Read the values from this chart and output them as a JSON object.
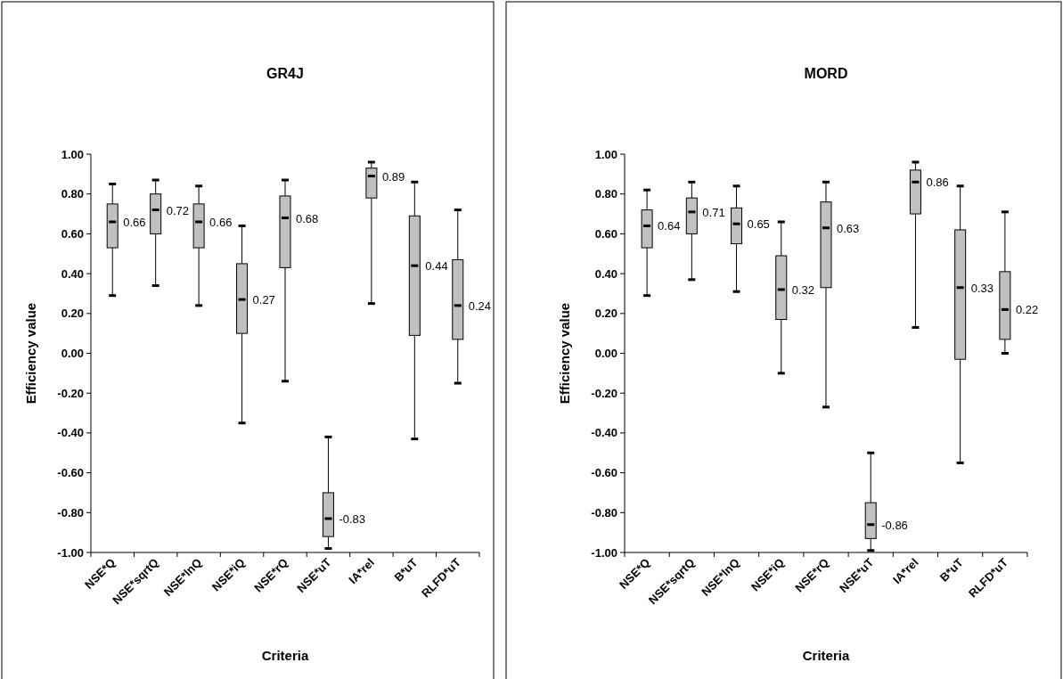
{
  "chart_data": [
    {
      "type": "box",
      "title": "GR4J",
      "xlabel": "Criteria",
      "ylabel": "Efficiency value",
      "categories": [
        "NSE*Q",
        "NSE*sqrtQ",
        "NSE*lnQ",
        "NSE*iQ",
        "NSE*rQ",
        "NSE*uT",
        "IA*rel",
        "B*uT",
        "RLFD*uT"
      ],
      "color": "#c0c0c0",
      "value_labels": [
        "0.66",
        "0.72",
        "0.66",
        "0.27",
        "0.68",
        "-0.83",
        "0.89",
        "0.44",
        "0.24"
      ],
      "boxes": [
        {
          "low": 0.29,
          "q1": 0.53,
          "median": 0.66,
          "q3": 0.75,
          "high": 0.85
        },
        {
          "low": 0.34,
          "q1": 0.6,
          "median": 0.72,
          "q3": 0.8,
          "high": 0.87
        },
        {
          "low": 0.24,
          "q1": 0.53,
          "median": 0.66,
          "q3": 0.75,
          "high": 0.84
        },
        {
          "low": -0.35,
          "q1": 0.1,
          "median": 0.27,
          "q3": 0.45,
          "high": 0.64
        },
        {
          "low": -0.14,
          "q1": 0.43,
          "median": 0.68,
          "q3": 0.79,
          "high": 0.87
        },
        {
          "low": -0.98,
          "q1": -0.92,
          "median": -0.83,
          "q3": -0.7,
          "high": -0.42
        },
        {
          "low": 0.25,
          "q1": 0.78,
          "median": 0.89,
          "q3": 0.93,
          "high": 0.96
        },
        {
          "low": -0.43,
          "q1": 0.09,
          "median": 0.44,
          "q3": 0.69,
          "high": 0.86
        },
        {
          "low": -0.15,
          "q1": 0.07,
          "median": 0.24,
          "q3": 0.47,
          "high": 0.72
        }
      ],
      "ylim": [
        -1,
        1
      ],
      "yticks": [
        {
          "value": -1,
          "label": "-1.00"
        },
        {
          "value": -0.8,
          "label": "-0.80"
        },
        {
          "value": -0.6,
          "label": "-0.60"
        },
        {
          "value": -0.4,
          "label": "-0.40"
        },
        {
          "value": -0.2,
          "label": "-0.20"
        },
        {
          "value": 0,
          "label": "0.00"
        },
        {
          "value": 0.2,
          "label": "0.20"
        },
        {
          "value": 0.4,
          "label": "0.40"
        },
        {
          "value": 0.6,
          "label": "0.60"
        },
        {
          "value": 0.8,
          "label": "0.80"
        },
        {
          "value": 1,
          "label": "1.00"
        }
      ]
    },
    {
      "type": "box",
      "title": "MORD",
      "xlabel": "Criteria",
      "ylabel": "Efficiency value",
      "categories": [
        "NSE*Q",
        "NSE*sqrtQ",
        "NSE*lnQ",
        "NSE*iQ",
        "NSE*rQ",
        "NSE*uT",
        "IA*rel",
        "B*uT",
        "RLFD*uT"
      ],
      "color": "#c0c0c0",
      "value_labels": [
        "0.64",
        "0.71",
        "0.65",
        "0.32",
        "0.63",
        "-0.86",
        "0.86",
        "0.33",
        "0.22"
      ],
      "boxes": [
        {
          "low": 0.29,
          "q1": 0.53,
          "median": 0.64,
          "q3": 0.72,
          "high": 0.82
        },
        {
          "low": 0.37,
          "q1": 0.6,
          "median": 0.71,
          "q3": 0.78,
          "high": 0.86
        },
        {
          "low": 0.31,
          "q1": 0.55,
          "median": 0.65,
          "q3": 0.73,
          "high": 0.84
        },
        {
          "low": -0.1,
          "q1": 0.17,
          "median": 0.32,
          "q3": 0.49,
          "high": 0.66
        },
        {
          "low": -0.27,
          "q1": 0.33,
          "median": 0.63,
          "q3": 0.76,
          "high": 0.86
        },
        {
          "low": -0.99,
          "q1": -0.93,
          "median": -0.86,
          "q3": -0.75,
          "high": -0.5
        },
        {
          "low": 0.13,
          "q1": 0.7,
          "median": 0.86,
          "q3": 0.92,
          "high": 0.96
        },
        {
          "low": -0.55,
          "q1": -0.03,
          "median": 0.33,
          "q3": 0.62,
          "high": 0.84
        },
        {
          "low": 0.0,
          "q1": 0.07,
          "median": 0.22,
          "q3": 0.41,
          "high": 0.71
        }
      ],
      "ylim": [
        -1,
        1
      ],
      "yticks": [
        {
          "value": -1,
          "label": "-1.00"
        },
        {
          "value": -0.8,
          "label": "-0.80"
        },
        {
          "value": -0.6,
          "label": "-0.60"
        },
        {
          "value": -0.4,
          "label": "-0.40"
        },
        {
          "value": -0.2,
          "label": "-0.20"
        },
        {
          "value": 0,
          "label": "0.00"
        },
        {
          "value": 0.2,
          "label": "0.20"
        },
        {
          "value": 0.4,
          "label": "0.40"
        },
        {
          "value": 0.6,
          "label": "0.60"
        },
        {
          "value": 0.8,
          "label": "0.80"
        },
        {
          "value": 1,
          "label": "1.00"
        }
      ]
    }
  ]
}
